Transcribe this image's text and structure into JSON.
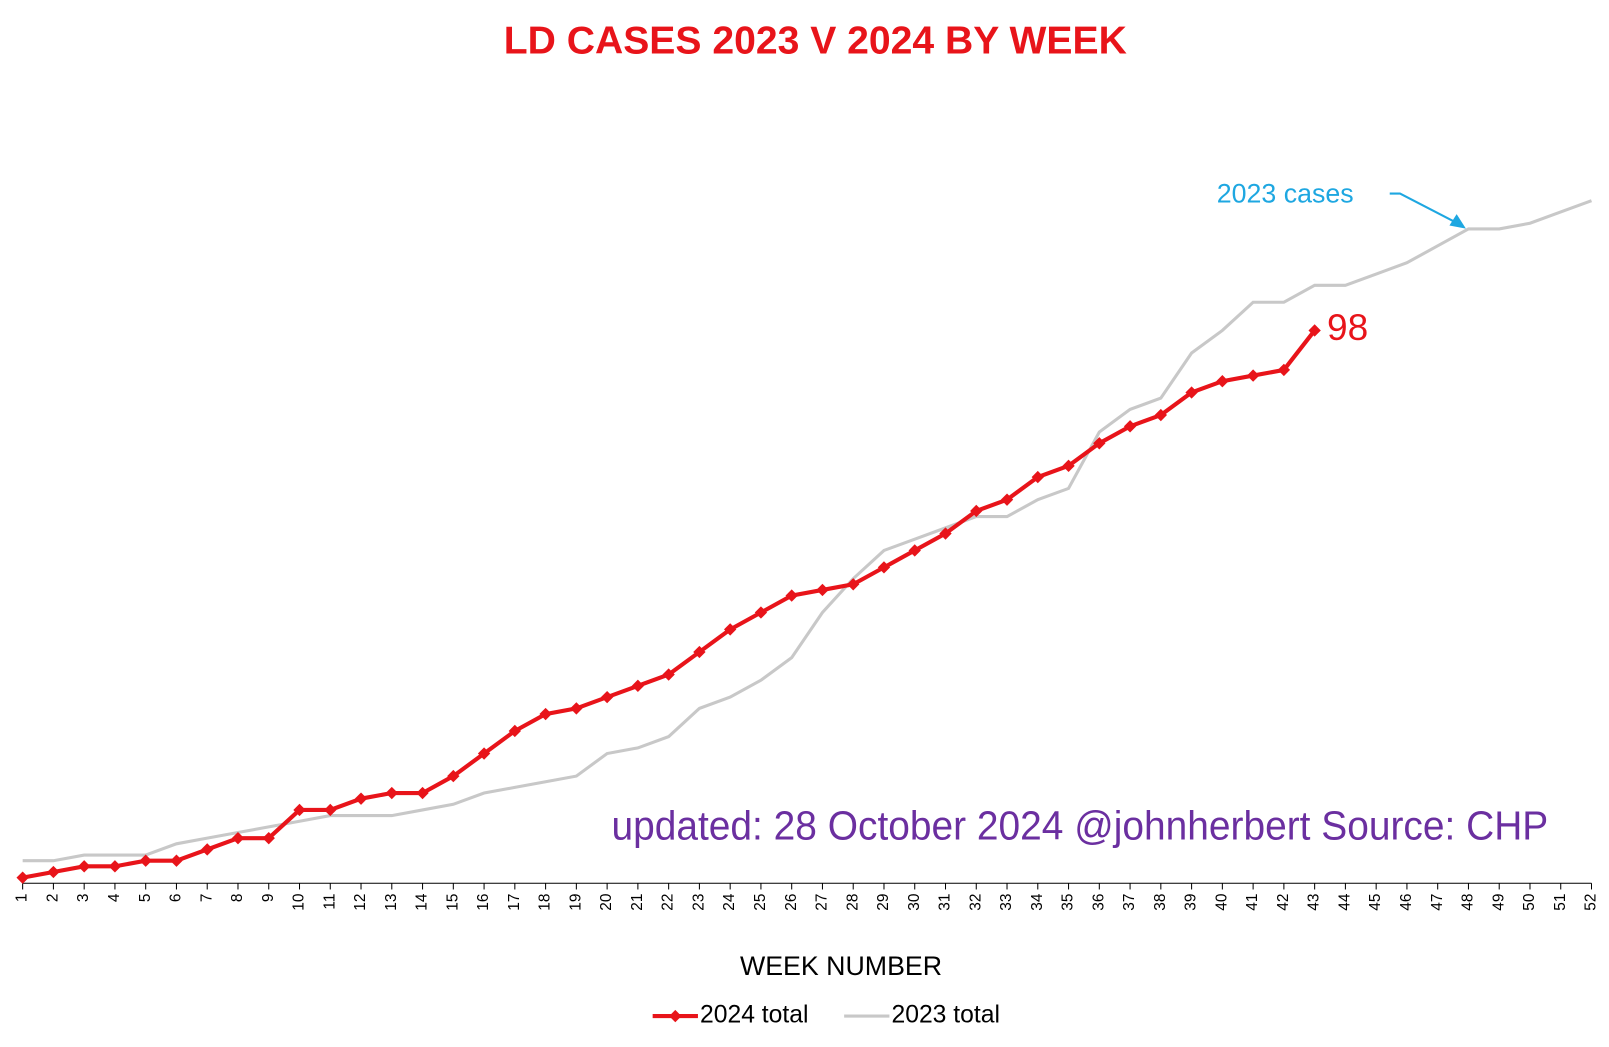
{
  "chart_data": {
    "type": "line",
    "title": "LD CASES 2023 V 2024 BY WEEK",
    "x_label": "WEEK NUMBER",
    "categories": [
      "1",
      "2",
      "3",
      "4",
      "5",
      "6",
      "7",
      "8",
      "9",
      "10",
      "11",
      "12",
      "13",
      "14",
      "15",
      "16",
      "17",
      "18",
      "19",
      "20",
      "21",
      "22",
      "23",
      "24",
      "25",
      "26",
      "27",
      "28",
      "29",
      "30",
      "31",
      "32",
      "33",
      "34",
      "35",
      "36",
      "37",
      "38",
      "39",
      "40",
      "41",
      "42",
      "43",
      "44",
      "45",
      "46",
      "47",
      "48",
      "49",
      "50",
      "51",
      "52"
    ],
    "series": [
      {
        "name": "2024 total",
        "color": "#e8141a",
        "marker": "diamond",
        "values": [
          1,
          2,
          3,
          3,
          4,
          4,
          6,
          8,
          8,
          13,
          13,
          15,
          16,
          16,
          19,
          23,
          27,
          30,
          31,
          33,
          35,
          37,
          41,
          45,
          48,
          51,
          52,
          53,
          56,
          59,
          62,
          66,
          68,
          72,
          74,
          78,
          81,
          83,
          87,
          89,
          90,
          91,
          98,
          null,
          null,
          null,
          null,
          null,
          null,
          null,
          null,
          null
        ]
      },
      {
        "name": "2023 total",
        "color": "#c8c8c8",
        "values": [
          4,
          4,
          5,
          5,
          5,
          7,
          8,
          9,
          10,
          11,
          12,
          12,
          12,
          13,
          14,
          16,
          17,
          18,
          19,
          23,
          24,
          26,
          31,
          33,
          36,
          40,
          48,
          54,
          59,
          61,
          63,
          65,
          65,
          68,
          70,
          80,
          84,
          86,
          94,
          98,
          103,
          103,
          106,
          106,
          108,
          110,
          113,
          116,
          116,
          117,
          119,
          121
        ]
      }
    ],
    "ylim": [
      0,
      125
    ],
    "legend": "bottom",
    "annotations": [
      "2023  cases",
      "updated: 28 October 2024  @johnherbert  Source: CHP"
    ]
  }
}
